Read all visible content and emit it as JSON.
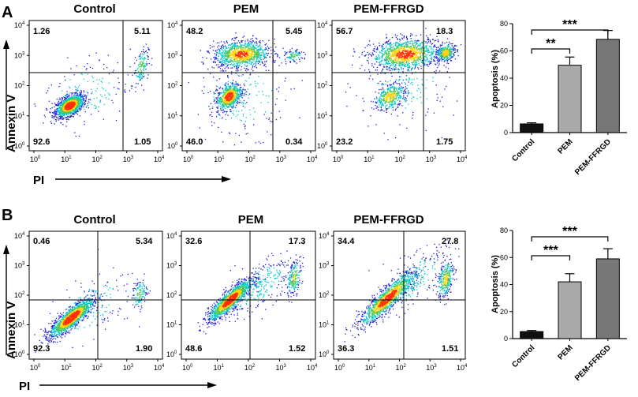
{
  "figure": {
    "rows": [
      {
        "label": "A",
        "flow": {
          "conditions": [
            "Control",
            "PEM",
            "PEM-FFRGD"
          ],
          "y_axis_label": "Annexin V",
          "x_axis_label": "PI",
          "quadrant_percentages": [
            {
              "upper_left": "1.26",
              "upper_right": "5.11",
              "lower_left": "92.6",
              "lower_right": "1.05"
            },
            {
              "upper_left": "48.2",
              "upper_right": "5.45",
              "lower_left": "46.0",
              "lower_right": "0.34"
            },
            {
              "upper_left": "56.7",
              "upper_right": "18.3",
              "lower_left": "23.2",
              "lower_right": "1.75"
            }
          ]
        }
      },
      {
        "label": "B",
        "flow": {
          "conditions": [
            "Control",
            "PEM",
            "PEM-FFRGD"
          ],
          "y_axis_label": "Annexin V",
          "x_axis_label": "PI",
          "quadrant_percentages": [
            {
              "upper_left": "0.46",
              "upper_right": "5.34",
              "lower_left": "92.3",
              "lower_right": "1.90"
            },
            {
              "upper_left": "32.6",
              "upper_right": "17.3",
              "lower_left": "48.6",
              "lower_right": "1.52"
            },
            {
              "upper_left": "34.4",
              "upper_right": "27.8",
              "lower_left": "36.3",
              "lower_right": "1.51"
            }
          ]
        }
      }
    ],
    "log_tick_base": "10",
    "log_tick_exponents": [
      "0",
      "1",
      "2",
      "3",
      "4"
    ],
    "colors": {
      "dots_low": "#1c1cd8",
      "dots_mid": "#00c8c8",
      "dots_mid2": "#50c850",
      "dots_high": "#ffd200",
      "dots_peak": "#ff3000",
      "bar_control": "#111111",
      "bar_pem": "#a9a9a9",
      "bar_pemffrgd": "#777777",
      "axis": "#000000"
    }
  },
  "chart_data": [
    {
      "type": "bar",
      "panel": "A",
      "categories": [
        "Control",
        "PEM",
        "PEM-FFRGD"
      ],
      "values": [
        6.4,
        49.5,
        68.5
      ],
      "errors": [
        0.8,
        6.0,
        6.5
      ],
      "ylabel": "Apoptosis (%)",
      "ylim": [
        0,
        80
      ],
      "yticks": [
        "0",
        "20",
        "40",
        "60",
        "80"
      ],
      "significance": [
        {
          "from": "Control",
          "to": "PEM",
          "label": "**"
        },
        {
          "from": "Control",
          "to": "PEM-FFRGD",
          "label": "***"
        }
      ]
    },
    {
      "type": "bar",
      "panel": "B",
      "categories": [
        "Control",
        "PEM",
        "PEM-FFRGD"
      ],
      "values": [
        5.2,
        42.0,
        59.0
      ],
      "errors": [
        0.8,
        6.0,
        7.5
      ],
      "ylabel": "Apoptosis (%)",
      "ylim": [
        0,
        80
      ],
      "yticks": [
        "0",
        "20",
        "40",
        "60",
        "80"
      ],
      "significance": [
        {
          "from": "Control",
          "to": "PEM",
          "label": "***"
        },
        {
          "from": "Control",
          "to": "PEM-FFRGD",
          "label": "***"
        }
      ]
    },
    {
      "type": "scatter",
      "panel": "A",
      "plots": [
        {
          "condition": "Control",
          "clusters": [
            {
              "cx": 1.15,
              "cy": 1.35,
              "sx": 0.22,
              "sy": 0.18,
              "rho": 0.5,
              "n": 1400,
              "dens": 1.0
            },
            {
              "cx": 3.45,
              "cy": 2.65,
              "sx": 0.12,
              "sy": 0.3,
              "rho": 0.4,
              "n": 140,
              "dens": 0.3
            },
            {
              "cx": 1.7,
              "cy": 1.8,
              "sx": 0.7,
              "sy": 0.6,
              "rho": 0.2,
              "n": 160,
              "dens": 0.05
            }
          ]
        },
        {
          "condition": "PEM",
          "clusters": [
            {
              "cx": 1.35,
              "cy": 1.65,
              "sx": 0.2,
              "sy": 0.22,
              "rho": 0.4,
              "n": 700,
              "dens": 0.9
            },
            {
              "cx": 1.75,
              "cy": 3.05,
              "sx": 0.45,
              "sy": 0.22,
              "rho": 0.1,
              "n": 1100,
              "dens": 0.75
            },
            {
              "cx": 3.45,
              "cy": 3.0,
              "sx": 0.14,
              "sy": 0.1,
              "rho": 0.0,
              "n": 90,
              "dens": 0.3
            },
            {
              "cx": 1.8,
              "cy": 1.6,
              "sx": 0.8,
              "sy": 0.7,
              "rho": 0.2,
              "n": 200,
              "dens": 0.05
            }
          ]
        },
        {
          "condition": "PEM-FFRGD",
          "clusters": [
            {
              "cx": 1.7,
              "cy": 1.65,
              "sx": 0.25,
              "sy": 0.22,
              "rho": 0.4,
              "n": 400,
              "dens": 0.6
            },
            {
              "cx": 2.2,
              "cy": 3.05,
              "sx": 0.55,
              "sy": 0.25,
              "rho": 0.15,
              "n": 1200,
              "dens": 0.8
            },
            {
              "cx": 3.5,
              "cy": 3.1,
              "sx": 0.15,
              "sy": 0.15,
              "rho": 0.2,
              "n": 300,
              "dens": 0.6
            },
            {
              "cx": 2.2,
              "cy": 2.0,
              "sx": 0.8,
              "sy": 0.7,
              "rho": 0.2,
              "n": 200,
              "dens": 0.05
            }
          ]
        }
      ]
    },
    {
      "type": "scatter",
      "panel": "B",
      "plots": [
        {
          "condition": "Control",
          "clusters": [
            {
              "cx": 1.2,
              "cy": 1.25,
              "sx": 0.35,
              "sy": 0.32,
              "rho": 0.85,
              "n": 1400,
              "dens": 1.0
            },
            {
              "cx": 3.4,
              "cy": 2.05,
              "sx": 0.12,
              "sy": 0.25,
              "rho": 0.3,
              "n": 120,
              "dens": 0.25
            },
            {
              "cx": 1.8,
              "cy": 1.6,
              "sx": 0.7,
              "sy": 0.6,
              "rho": 0.5,
              "n": 150,
              "dens": 0.05
            }
          ]
        },
        {
          "condition": "PEM",
          "clusters": [
            {
              "cx": 1.4,
              "cy": 1.85,
              "sx": 0.35,
              "sy": 0.35,
              "rho": 0.88,
              "n": 1300,
              "dens": 0.95
            },
            {
              "cx": 3.45,
              "cy": 2.6,
              "sx": 0.12,
              "sy": 0.3,
              "rho": 0.4,
              "n": 200,
              "dens": 0.4
            },
            {
              "cx": 2.3,
              "cy": 2.3,
              "sx": 0.6,
              "sy": 0.55,
              "rho": 0.7,
              "n": 300,
              "dens": 0.08
            }
          ]
        },
        {
          "condition": "PEM-FFRGD",
          "clusters": [
            {
              "cx": 1.6,
              "cy": 1.9,
              "sx": 0.45,
              "sy": 0.45,
              "rho": 0.9,
              "n": 1200,
              "dens": 0.9
            },
            {
              "cx": 3.5,
              "cy": 2.55,
              "sx": 0.13,
              "sy": 0.32,
              "rho": 0.4,
              "n": 300,
              "dens": 0.5
            },
            {
              "cx": 2.4,
              "cy": 2.5,
              "sx": 0.6,
              "sy": 0.55,
              "rho": 0.7,
              "n": 300,
              "dens": 0.08
            }
          ]
        }
      ]
    }
  ]
}
